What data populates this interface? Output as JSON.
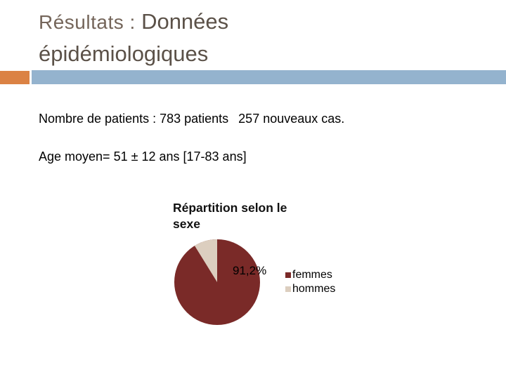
{
  "slide": {
    "title": {
      "prefix": "Résultats : ",
      "emphasis": "Données épidémiologiques"
    },
    "body": {
      "line1_left": "Nombre de patients : 783 patients",
      "line1_right": "257 nouveaux cas.",
      "line2": "Age moyen= 51 ± 12 ans [17-83 ans]"
    },
    "theme_colors": {
      "accent_orange": "#DB8244",
      "accent_blue": "#94B3CE",
      "title_prefix_text": "#74655A",
      "title_emphasis_text": "#5B5148"
    }
  },
  "chart_data": {
    "type": "pie",
    "title": "Répartition selon le sexe",
    "labels": [
      "femmes",
      "hommes"
    ],
    "values": [
      91.2,
      8.8
    ],
    "colors": [
      "#7A2A28",
      "#DCCEBF"
    ],
    "data_label": "91,2%",
    "data_label_series": "femmes",
    "legend_position": "right",
    "start_angle_deg": 0,
    "direction": "clockwise"
  }
}
